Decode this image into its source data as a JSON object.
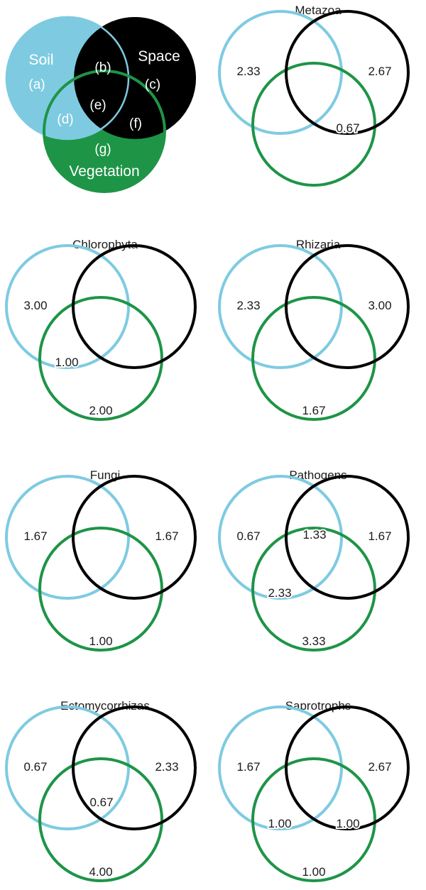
{
  "colors": {
    "soil": "#7ECBE1",
    "space": "#000000",
    "vegetation": "#1E9447",
    "key_text": "#FFFFFF",
    "value_text": "#1A1A1A"
  },
  "key": {
    "soil_label": "Soil",
    "space_label": "Space",
    "vegetation_label": "Vegetation",
    "a": "(a)",
    "b": "(b)",
    "c": "(c)",
    "d": "(d)",
    "e": "(e)",
    "f": "(f)",
    "g": "(g)"
  },
  "panels": [
    {
      "title": "Metazoa",
      "values": {
        "a": "2.33",
        "c": "2.67",
        "f": "0.67"
      }
    },
    {
      "title": "Chlorophyta",
      "values": {
        "a": "3.00",
        "d": "1.00",
        "g": "2.00"
      }
    },
    {
      "title": "Rhizaria",
      "values": {
        "a": "2.33",
        "c": "3.00",
        "g": "1.67"
      }
    },
    {
      "title": "Fungi",
      "values": {
        "a": "1.67",
        "c": "1.67",
        "g": "1.00"
      }
    },
    {
      "title": "Pathogens",
      "values": {
        "a": "0.67",
        "b": "1.33",
        "c": "1.67",
        "d": "2.33",
        "g": "3.33"
      }
    },
    {
      "title": "Ectomycorrhizas",
      "values": {
        "a": "0.67",
        "c": "2.33",
        "e": "0.67",
        "g": "4.00"
      }
    },
    {
      "title": "Saprotrophs",
      "values": {
        "a": "1.67",
        "c": "2.67",
        "d": "1.00",
        "f": "1.00",
        "g": "1.00"
      }
    }
  ]
}
